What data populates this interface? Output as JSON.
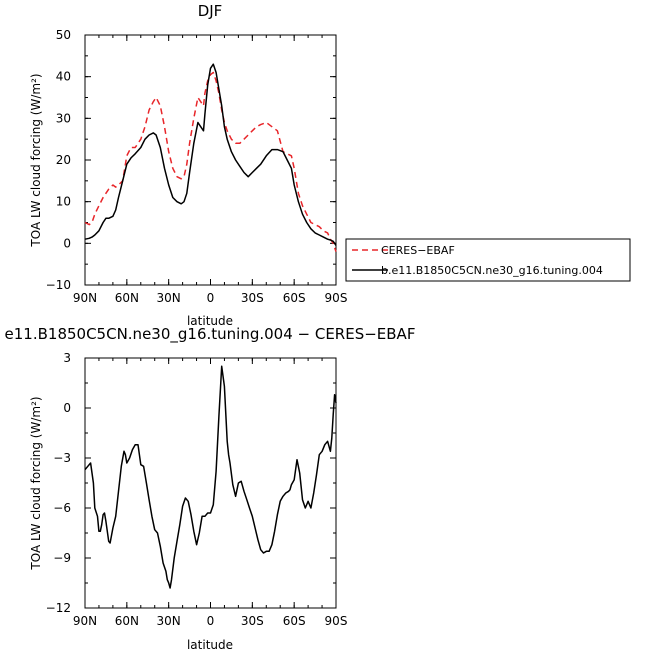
{
  "chart_data": [
    {
      "type": "line",
      "title": "DJF",
      "xlabel": "latitude",
      "ylabel": "TOA LW cloud forcing (W/m²)",
      "xlim": [
        90,
        -90
      ],
      "ylim": [
        -10,
        50
      ],
      "xticks": [
        90,
        60,
        30,
        0,
        -30,
        -60,
        -90
      ],
      "xtick_labels": [
        "90N",
        "60N",
        "30N",
        "0",
        "30S",
        "60S",
        "90S"
      ],
      "yticks": [
        -10,
        0,
        10,
        20,
        30,
        40,
        50
      ],
      "ytick_labels": [
        "−10",
        "0",
        "10",
        "20",
        "30",
        "40",
        "50"
      ],
      "legend_position": "right",
      "series": [
        {
          "name": "CERES−EBAF",
          "color": "#e8262a",
          "dash": "dashed",
          "x": [
            90,
            87,
            85,
            83,
            80,
            77,
            75,
            73,
            70,
            68,
            66,
            63,
            60,
            57,
            54,
            50,
            47,
            44,
            41,
            39,
            36,
            33,
            30,
            27,
            24,
            21,
            19,
            17,
            15,
            12,
            9,
            7,
            5,
            4,
            2,
            0,
            -2,
            -4,
            -6,
            -8,
            -10,
            -12,
            -15,
            -18,
            -21,
            -24,
            -27,
            -30,
            -33,
            -36,
            -40,
            -44,
            -48,
            -52,
            -55,
            -58,
            -60,
            -63,
            -66,
            -69,
            -72,
            -75,
            -78,
            -81,
            -84,
            -86,
            -88,
            -89,
            -90
          ],
          "y": [
            5,
            4.5,
            5,
            7,
            9,
            11,
            12,
            13,
            14,
            13.5,
            14,
            15,
            21,
            23,
            23,
            25,
            28,
            32,
            34,
            35,
            33,
            28,
            22,
            18,
            16,
            15.5,
            16,
            19,
            24,
            30,
            35,
            34,
            33,
            36,
            39,
            40.5,
            41,
            39,
            36,
            32,
            29,
            27,
            25,
            24,
            24,
            25,
            26,
            27,
            28,
            28.5,
            29,
            28,
            27,
            22,
            21.5,
            21,
            18,
            12,
            9,
            7,
            5,
            4.5,
            4,
            3,
            2.5,
            1,
            0,
            -1,
            -2
          ]
        },
        {
          "name": "b.e11.B1850C5CN.ne30_g16.tuning.004",
          "color": "#000000",
          "dash": "solid",
          "x": [
            90,
            87,
            85,
            83,
            80,
            77,
            75,
            73,
            70,
            68,
            66,
            63,
            60,
            57,
            54,
            50,
            47,
            44,
            41,
            39,
            36,
            33,
            30,
            27,
            24,
            21,
            19,
            17,
            15,
            12,
            9,
            7,
            5,
            4,
            2,
            0,
            -2,
            -4,
            -6,
            -8,
            -10,
            -12,
            -15,
            -18,
            -21,
            -24,
            -27,
            -30,
            -33,
            -36,
            -40,
            -44,
            -48,
            -52,
            -55,
            -58,
            -60,
            -63,
            -66,
            -69,
            -72,
            -75,
            -78,
            -81,
            -84,
            -86,
            -88,
            -89,
            -90
          ],
          "y": [
            1,
            1.2,
            1.5,
            2,
            3,
            5,
            6,
            6,
            6.5,
            8,
            11,
            15,
            19,
            20.5,
            21.5,
            23,
            25,
            26,
            26.5,
            26,
            23,
            18,
            14,
            11,
            10,
            9.5,
            10,
            12,
            17,
            24,
            29,
            28,
            27,
            31,
            38,
            42,
            43,
            41,
            37,
            33,
            28,
            25,
            22,
            20,
            18.5,
            17,
            16,
            17,
            18,
            19,
            21,
            22.5,
            22.5,
            22,
            20,
            18,
            14,
            10,
            7,
            5,
            3.5,
            2.5,
            2,
            1.5,
            1,
            0.8,
            0.5,
            0,
            -0.5
          ]
        }
      ]
    },
    {
      "type": "line",
      "title": "e11.B1850C5CN.ne30_g16.tuning.004 − CERES−EBAF",
      "xlabel": "latitude",
      "ylabel": "TOA LW cloud forcing (W/m²)",
      "xlim": [
        90,
        -90
      ],
      "ylim": [
        -12,
        3
      ],
      "xticks": [
        90,
        60,
        30,
        0,
        -30,
        -60,
        -90
      ],
      "xtick_labels": [
        "90N",
        "60N",
        "30N",
        "0",
        "30S",
        "60S",
        "90S"
      ],
      "yticks": [
        -12,
        -9,
        -6,
        -3,
        0,
        3
      ],
      "ytick_labels": [
        "−12",
        "−9",
        "−6",
        "−3",
        "0",
        "3"
      ],
      "series": [
        {
          "color": "#000000",
          "dash": "solid",
          "x": [
            90,
            88,
            86,
            84,
            83,
            81,
            80,
            79,
            78,
            77,
            76,
            75,
            74,
            73,
            72,
            70,
            68,
            66,
            64,
            62,
            61,
            60,
            58,
            56,
            54,
            52,
            50,
            48,
            46,
            44,
            42,
            40,
            38,
            36,
            34,
            32,
            31,
            30,
            29,
            28,
            26,
            24,
            22,
            20,
            18,
            16,
            14,
            12,
            10,
            8,
            6,
            4,
            2,
            0,
            -2,
            -4,
            -6,
            -8,
            -10,
            -12,
            -13,
            -14,
            -16,
            -18,
            -20,
            -22,
            -24,
            -26,
            -28,
            -30,
            -32,
            -34,
            -36,
            -38,
            -40,
            -42,
            -44,
            -46,
            -48,
            -50,
            -52,
            -54,
            -56,
            -57,
            -58,
            -60,
            -62,
            -64,
            -66,
            -68,
            -70,
            -72,
            -74,
            -76,
            -78,
            -80,
            -82,
            -84,
            -86,
            -87,
            -88,
            -89,
            -90
          ],
          "y": [
            -3.7,
            -3.5,
            -3.3,
            -4.5,
            -6,
            -6.5,
            -7.4,
            -7.4,
            -7,
            -6.4,
            -6.3,
            -6.8,
            -7.4,
            -8,
            -8.1,
            -7.2,
            -6.5,
            -5,
            -3.5,
            -2.6,
            -2.8,
            -3.3,
            -3,
            -2.5,
            -2.2,
            -2.2,
            -3.4,
            -3.5,
            -4.5,
            -5.5,
            -6.5,
            -7.3,
            -7.5,
            -8.3,
            -9.3,
            -9.8,
            -10.3,
            -10.5,
            -10.8,
            -10.3,
            -9,
            -8,
            -7,
            -5.9,
            -5.4,
            -5.6,
            -6.4,
            -7.4,
            -8.2,
            -7.5,
            -6.5,
            -6.5,
            -6.3,
            -6.3,
            -5.8,
            -3.8,
            -0.5,
            2.5,
            1.3,
            -2,
            -2.8,
            -3.3,
            -4.6,
            -5.3,
            -4.5,
            -4.4,
            -5,
            -5.5,
            -6,
            -6.5,
            -7.2,
            -7.9,
            -8.5,
            -8.7,
            -8.6,
            -8.6,
            -8.2,
            -7.4,
            -6.4,
            -5.6,
            -5.3,
            -5.1,
            -5,
            -4.9,
            -4.6,
            -4.3,
            -3.1,
            -3.9,
            -5.5,
            -6,
            -5.6,
            -6,
            -5.1,
            -4,
            -2.8,
            -2.6,
            -2.2,
            -2,
            -2.6,
            -1.8,
            -0.4,
            0.8,
            0.3
          ]
        }
      ]
    }
  ]
}
